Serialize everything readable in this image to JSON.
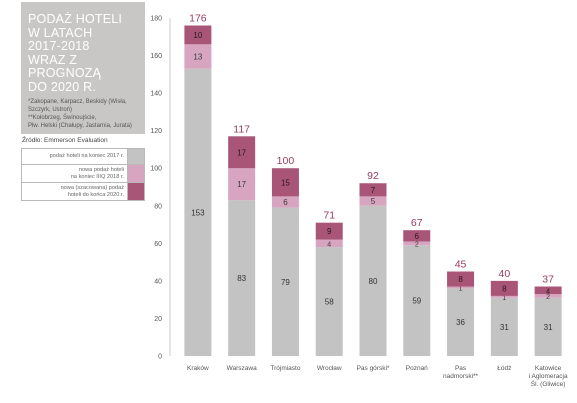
{
  "title_lines": [
    "PODAŻ HOTELI",
    "W LATACH",
    "2017-2018",
    "WRAZ Z PROGNOZĄ",
    "DO 2020 R."
  ],
  "notes": [
    "*Zakopane, Karpacz, Beskidy (Wisła,",
    "Szczyrk, Ustroń)",
    "**Kołobrzeg, Świnoujście,",
    "Płw. Helski (Chałupy, Jastarnia, Jurata)"
  ],
  "source": "Źródło: Emmerson Evaluation",
  "legend": [
    {
      "lines": [
        "podaż hoteli na koniec 2017 r."
      ],
      "color": "#c3c3c3"
    },
    {
      "lines": [
        "nowa podaż hoteli",
        "na koniec IIIQ 2018 r."
      ],
      "color": "#d7a5bf"
    },
    {
      "lines": [
        "nowa (szacowana) podaż",
        "hoteli do końca 2020 r."
      ],
      "color": "#a85578"
    }
  ],
  "chart_data": {
    "type": "bar",
    "stacked": true,
    "categories": [
      [
        "Kraków"
      ],
      [
        "Warszawa"
      ],
      [
        "Trójmiasto"
      ],
      [
        "Wrocław"
      ],
      [
        "Pas górski*"
      ],
      [
        "Poznań"
      ],
      [
        "Pas",
        "nadmorski**"
      ],
      [
        "Łódź"
      ],
      [
        "Katowice",
        "i Aglomeracja",
        "Śl. (Gliwice)"
      ]
    ],
    "series": [
      {
        "name": "podaż hoteli na koniec 2017 r.",
        "color": "#c3c3c3",
        "values": [
          153,
          83,
          79,
          58,
          80,
          59,
          36,
          31,
          31
        ]
      },
      {
        "name": "nowa podaż hoteli na koniec IIIQ 2018 r.",
        "color": "#d7a5bf",
        "values": [
          13,
          17,
          6,
          4,
          5,
          2,
          1,
          1,
          2
        ]
      },
      {
        "name": "nowa (szacowana) podaż hoteli do końca 2020 r.",
        "color": "#a85578",
        "values": [
          10,
          17,
          15,
          9,
          7,
          6,
          8,
          8,
          4
        ]
      }
    ],
    "totals": [
      176,
      117,
      100,
      71,
      92,
      67,
      45,
      40,
      37
    ],
    "total_color": "#9a3c65",
    "ylim": [
      0,
      180
    ],
    "yticks": [
      0,
      20,
      40,
      60,
      80,
      100,
      120,
      140,
      160,
      180
    ],
    "grid": false
  }
}
